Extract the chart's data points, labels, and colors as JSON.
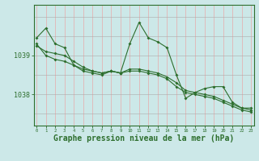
{
  "xlabel": "Graphe pression niveau de la mer (hPa)",
  "xlabel_fontsize": 7,
  "hours": [
    0,
    1,
    2,
    3,
    4,
    5,
    6,
    7,
    8,
    9,
    10,
    11,
    12,
    13,
    14,
    15,
    16,
    17,
    18,
    19,
    20,
    21,
    22,
    23
  ],
  "line1": [
    1039.45,
    1039.7,
    1039.3,
    1039.2,
    1038.75,
    1038.6,
    1038.55,
    1038.5,
    1038.6,
    1038.55,
    1039.3,
    1039.85,
    1039.45,
    1039.35,
    1039.2,
    1038.5,
    1037.9,
    1038.05,
    1038.15,
    1038.2,
    1038.2,
    1037.8,
    1037.65,
    1037.65
  ],
  "line2": [
    1039.3,
    1039.0,
    1038.9,
    1038.85,
    1038.75,
    1038.65,
    1038.6,
    1038.55,
    1038.6,
    1038.55,
    1038.6,
    1038.6,
    1038.55,
    1038.5,
    1038.4,
    1038.2,
    1038.05,
    1038.0,
    1037.95,
    1037.9,
    1037.8,
    1037.7,
    1037.6,
    1037.55
  ],
  "line3": [
    1039.25,
    1039.1,
    1039.05,
    1039.0,
    1038.85,
    1038.7,
    1038.6,
    1038.55,
    1038.6,
    1038.55,
    1038.65,
    1038.65,
    1038.6,
    1038.55,
    1038.45,
    1038.3,
    1038.1,
    1038.05,
    1038.0,
    1037.95,
    1037.85,
    1037.75,
    1037.65,
    1037.6
  ],
  "line_color": "#2d6e2d",
  "bg_color": "#cce8e8",
  "grid_color_h": "#aaaaaa",
  "grid_color_v": "#e8aaaa",
  "yticks": [
    1038.0,
    1039.0
  ],
  "ylim": [
    1037.2,
    1040.3
  ],
  "xlim": [
    -0.3,
    23.3
  ],
  "marker": "D",
  "markersize": 2.0,
  "linewidth": 0.8
}
